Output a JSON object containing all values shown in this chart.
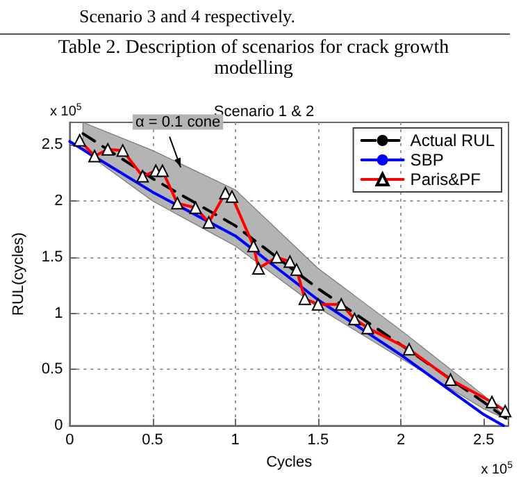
{
  "chart_data": {
    "type": "line",
    "title": "Scenario 1 & 2",
    "xlabel": "Cycles",
    "ylabel": "RUL(cycles)",
    "annotations": [
      "Scenario 3 and 4 respectively.",
      "Table 2. Description of scenarios for crack growth modelling",
      "x 10$^{5}$",
      "x 10$^{5}$",
      {
        "text": "α = 0.1 cone",
        "x": 0.67,
        "y": 2.3
      }
    ],
    "xlim": [
      0,
      2.65
    ],
    "xticks": [
      0,
      0.5,
      1,
      1.5,
      2,
      2.5
    ],
    "ylim": [
      0,
      2.7
    ],
    "yticks": [
      0,
      0.5,
      1,
      1.5,
      2,
      2.5
    ],
    "grid": true,
    "legend": "top right",
    "series": [
      {
        "name": "Actual RUL",
        "color": "#000000",
        "line_style": "dashed",
        "x": [
          0.08,
          0.5,
          1,
          1.5,
          2,
          2.5,
          2.65
        ],
        "values": [
          2.6,
          2.2,
          1.78,
          1.22,
          0.72,
          0.21,
          0.05
        ],
        "upper": [
          2.7,
          2.45,
          2.1,
          1.4,
          0.85,
          0.27,
          0.05
        ],
        "lower": [
          2.45,
          2.0,
          1.6,
          1.05,
          0.6,
          0.15,
          0.05
        ]
      },
      {
        "name": "SBP",
        "color": "#0000ff",
        "x": [
          0,
          0.5,
          1,
          1.5,
          2,
          2.5,
          2.62
        ],
        "values": [
          2.53,
          2.08,
          1.69,
          1.12,
          0.63,
          0.1,
          0.0
        ]
      },
      {
        "name": "Paris&PF",
        "color": "#ff0000",
        "marker": "triangle",
        "x": [
          0.06,
          0.15,
          0.23,
          0.32,
          0.44,
          0.52,
          0.56,
          0.65,
          0.76,
          0.84,
          0.94,
          0.98,
          1.11,
          1.14,
          1.25,
          1.33,
          1.37,
          1.42,
          1.5,
          1.64,
          1.72,
          1.8,
          2.05,
          2.3,
          2.55,
          2.63
        ],
        "values": [
          2.54,
          2.4,
          2.46,
          2.45,
          2.22,
          2.27,
          2.27,
          1.98,
          1.94,
          1.81,
          2.07,
          2.04,
          1.6,
          1.4,
          1.5,
          1.46,
          1.39,
          1.13,
          1.08,
          1.08,
          0.95,
          0.87,
          0.68,
          0.41,
          0.21,
          0.13
        ]
      }
    ]
  }
}
